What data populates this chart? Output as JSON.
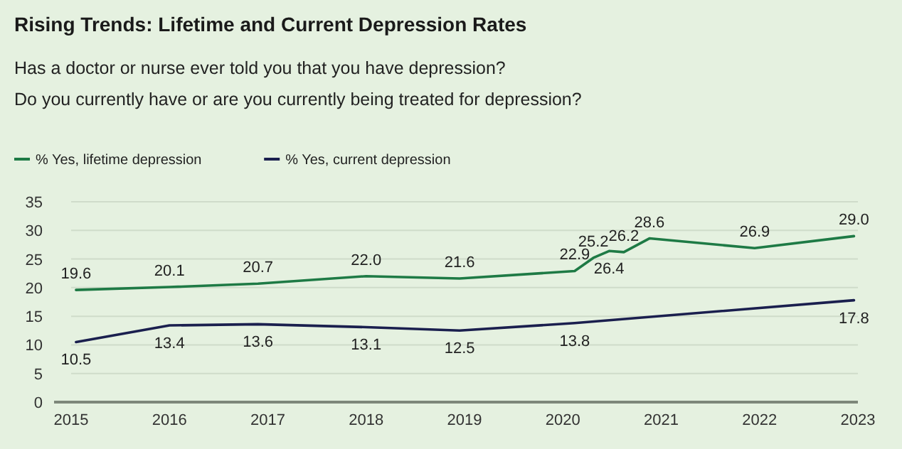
{
  "chart_data": {
    "type": "line",
    "title": "Rising Trends: Lifetime and Current Depression Rates",
    "subtitle": "Has a doctor or nurse ever told you that you have depression?\nDo you currently have or are you currently being treated for depression?",
    "xlim": [
      2015,
      2023
    ],
    "xticks": [
      2015,
      2016,
      2017,
      2018,
      2019,
      2020,
      2021,
      2022,
      2023
    ],
    "ylim": [
      0,
      35
    ],
    "yticks": [
      0,
      5,
      10,
      15,
      20,
      25,
      30,
      35
    ],
    "grid": "y",
    "legend": "top left",
    "marker": "none",
    "line_style": "solid",
    "series": [
      {
        "name": "% Yes, lifetime depression",
        "color": "#1e7a45",
        "x": [
          2015.05,
          2016,
          2016.9,
          2018,
          2018.95,
          2020.12,
          2020.31,
          2020.47,
          2020.62,
          2020.88,
          2021.95,
          2022.96
        ],
        "values": [
          19.6,
          20.1,
          20.7,
          22.0,
          21.6,
          22.9,
          25.2,
          26.4,
          26.2,
          28.6,
          26.9,
          29.0
        ],
        "value_labels": [
          "19.6",
          "20.1",
          "20.7",
          "22.0",
          "21.6",
          "22.9",
          "25.2",
          "26.4",
          "26.2",
          "28.6",
          "26.9",
          "29.0"
        ]
      },
      {
        "name": "% Yes, current depression",
        "color": "#1a1f4e",
        "x": [
          2015.05,
          2016,
          2016.9,
          2018,
          2018.95,
          2020.12,
          2022.96
        ],
        "values": [
          10.5,
          13.4,
          13.6,
          13.1,
          12.5,
          13.8,
          17.8
        ],
        "value_labels": [
          "10.5",
          "13.4",
          "13.6",
          "13.1",
          "12.5",
          "13.8",
          "17.8"
        ]
      }
    ]
  }
}
